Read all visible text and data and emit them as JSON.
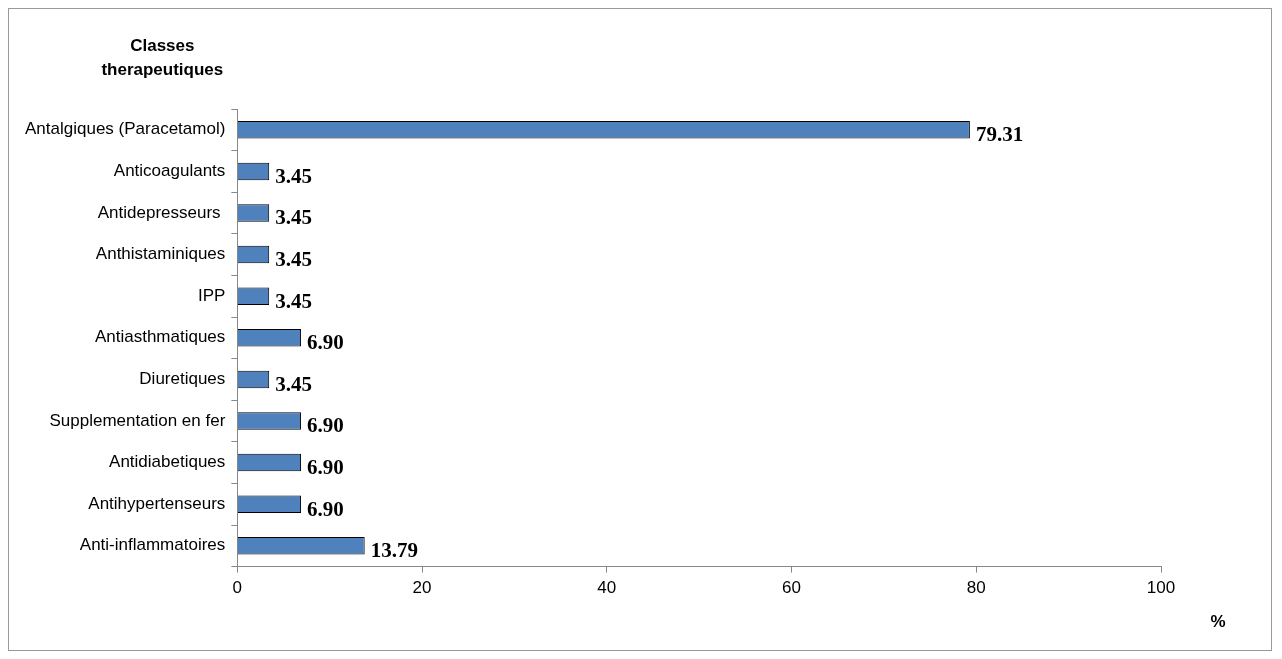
{
  "chart_data": {
    "type": "bar",
    "orientation": "horizontal",
    "ylabel": "Classes therapeutiques",
    "xlabel": "%",
    "categories": [
      "Antalgiques (Paracetamol)",
      "Anticoagulants",
      "Antidepresseurs ",
      "Anthistaminiques",
      "IPP",
      "Antiasthmatiques",
      "Diuretiques",
      "Supplementation en fer",
      "Antidiabetiques",
      "Antihypertenseurs",
      "Anti-inflammatoires"
    ],
    "values": [
      79.31,
      3.45,
      3.45,
      3.45,
      3.45,
      6.9,
      3.45,
      6.9,
      6.9,
      6.9,
      13.79
    ],
    "value_labels": [
      "79.31",
      "3.45",
      "3.45",
      "3.45",
      "3.45",
      "6.90",
      "3.45",
      "6.90",
      "6.90",
      "6.90",
      "13.79"
    ],
    "color": "#4f81bd",
    "xlim": [
      0,
      100
    ],
    "xticks": [
      0,
      20,
      40,
      60,
      80,
      100
    ],
    "legend": false
  }
}
